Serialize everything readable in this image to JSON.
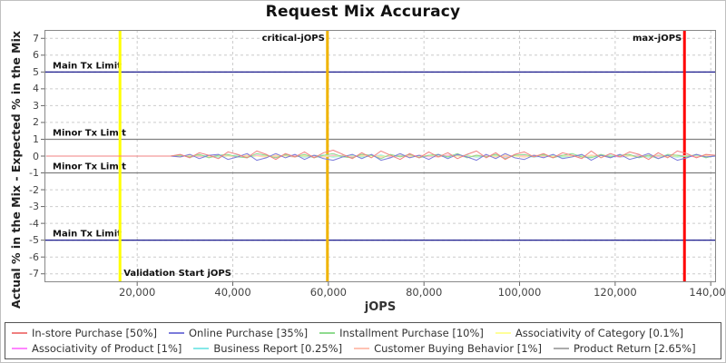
{
  "chart": {
    "title": "Request Mix Accuracy",
    "xlabel": "jOPS",
    "ylabel": "Actual % in the Mix - Expected % in the Mix"
  },
  "chart_data": {
    "type": "line",
    "title": "Request Mix Accuracy",
    "xlabel": "jOPS",
    "ylabel": "Actual % in the Mix - Expected % in the Mix",
    "xlim": [
      600,
      141100
    ],
    "ylim": [
      -7.5,
      7.5
    ],
    "grid": "dashed",
    "legend_position": "bottom",
    "yticks": [
      7,
      6,
      5,
      4,
      3,
      2,
      1,
      0,
      -1,
      -2,
      -3,
      -4,
      -5,
      -6,
      -7
    ],
    "xticks": [
      20000,
      40000,
      60000,
      80000,
      100000,
      120000,
      140000
    ],
    "xtick_labels": [
      "20,000",
      "40,000",
      "60,000",
      "80,000",
      "100,000",
      "120,000",
      "140,000"
    ],
    "hlines": [
      {
        "y": 5,
        "color": "#000080",
        "label": "Main Tx Limit"
      },
      {
        "y": 1,
        "color": "#808080",
        "label": "Minor Tx Limit"
      },
      {
        "y": -1,
        "color": "#808080",
        "label": "Minor Tx Limit"
      },
      {
        "y": -5,
        "color": "#000080",
        "label": "Main Tx Limit"
      }
    ],
    "vlines": [
      {
        "x": 16400,
        "color": "#FFFF00",
        "width": 3,
        "label": "Validation Start jOPS",
        "label_pos": "bottom-right"
      },
      {
        "x": 59800,
        "color": "#F0B400",
        "width": 3,
        "label": "critical-jOPS",
        "label_pos": "top-left"
      },
      {
        "x": 134500,
        "color": "#FF0000",
        "width": 3,
        "label": "max-jOPS",
        "label_pos": "top-left"
      }
    ],
    "x": [
      1000,
      3000,
      5000,
      7000,
      9000,
      11000,
      13000,
      15000,
      17000,
      19000,
      21000,
      23000,
      25000,
      27000,
      29000,
      31000,
      33000,
      35000,
      37000,
      39000,
      41000,
      43000,
      45000,
      47000,
      49000,
      51000,
      53000,
      55000,
      57000,
      59000,
      61000,
      63000,
      65000,
      67000,
      69000,
      71000,
      73000,
      75000,
      77000,
      79000,
      81000,
      83000,
      85000,
      87000,
      89000,
      91000,
      93000,
      95000,
      97000,
      99000,
      101000,
      103000,
      105000,
      107000,
      109000,
      111000,
      113000,
      115000,
      117000,
      119000,
      121000,
      123000,
      125000,
      127000,
      129000,
      131000,
      133000,
      135000,
      137000,
      139000,
      141000
    ],
    "series": [
      {
        "name": "In-store Purchase [50%]",
        "color": "#F08080",
        "values": [
          0,
          0,
          0,
          0,
          0,
          0,
          0,
          0,
          0,
          0,
          0,
          0,
          0,
          0,
          0.1,
          -0.1,
          0.2,
          0.05,
          -0.15,
          0.25,
          0.1,
          -0.1,
          0.3,
          0.1,
          -0.2,
          0.15,
          -0.05,
          0.25,
          -0.1,
          0.2,
          0.35,
          0.1,
          -0.15,
          0.2,
          -0.1,
          0.3,
          0.05,
          -0.2,
          0.15,
          -0.1,
          0.25,
          -0.05,
          0.2,
          -0.15,
          0.1,
          0.3,
          -0.1,
          0.2,
          -0.2,
          0.1,
          0.25,
          -0.05,
          0.15,
          -0.1,
          0.2,
          0.05,
          -0.15,
          0.3,
          -0.1,
          0.15,
          -0.05,
          0.25,
          0.1,
          -0.2,
          0.2,
          -0.1,
          0.3,
          0.15,
          -0.1,
          0.1,
          0.05
        ]
      },
      {
        "name": "Online Purchase [35%]",
        "color": "#7B7BDB",
        "values": [
          0,
          0,
          0,
          0,
          0,
          0,
          0,
          0,
          0,
          0,
          0,
          0,
          0,
          0,
          -0.05,
          0.1,
          -0.15,
          0.05,
          0.1,
          -0.2,
          -0.05,
          0.15,
          -0.25,
          -0.1,
          0.15,
          -0.1,
          0.1,
          -0.2,
          0.05,
          -0.15,
          -0.25,
          -0.05,
          0.1,
          -0.15,
          0.1,
          -0.25,
          -0.1,
          0.15,
          -0.1,
          0.05,
          -0.2,
          0.1,
          -0.15,
          0.1,
          -0.05,
          -0.25,
          0.1,
          -0.15,
          0.15,
          -0.1,
          -0.2,
          0.05,
          -0.1,
          0.1,
          -0.15,
          -0.05,
          0.1,
          -0.25,
          0.05,
          -0.1,
          0.1,
          -0.2,
          -0.05,
          0.15,
          -0.15,
          0.05,
          -0.25,
          -0.1,
          0.1,
          -0.05,
          0
        ]
      },
      {
        "name": "Installment Purchase [10%]",
        "color": "#8FDB8F",
        "values": [
          0,
          0,
          0,
          0,
          0,
          0,
          0,
          0,
          0,
          0,
          0,
          0,
          0,
          0,
          0.05,
          -0.05,
          0.1,
          -0.1,
          0.05,
          0.1,
          -0.05,
          -0.1,
          0.15,
          0.05,
          -0.1,
          0.1,
          -0.05,
          0.1,
          -0.1,
          0.05,
          0.15,
          -0.05,
          -0.1,
          0.1,
          0.05,
          -0.15,
          0.1,
          -0.05,
          0.1,
          -0.1,
          0.05,
          0.1,
          -0.05,
          0.15,
          -0.1,
          0.05,
          -0.05,
          0.1,
          -0.15,
          0.05,
          0.1,
          -0.05,
          0.1,
          -0.1,
          0.05,
          0.15,
          -0.05,
          -0.1,
          0.1,
          -0.05,
          0.05,
          0.1,
          -0.1,
          0.05,
          -0.15,
          0.1,
          0.05,
          -0.05,
          0.1,
          -0.1,
          0.05
        ]
      },
      {
        "name": "Associativity of Category [0.1%]",
        "color": "#FFFF99",
        "values": [
          0,
          0,
          0,
          0,
          0,
          0,
          0,
          0,
          0,
          0,
          0,
          0,
          0,
          0,
          0,
          0,
          0,
          0,
          0,
          0,
          0,
          0,
          0,
          0,
          0,
          0,
          0,
          0,
          0,
          0,
          0,
          0,
          0,
          0,
          0,
          0,
          0,
          0,
          0,
          0,
          0,
          0,
          0,
          0,
          0,
          0,
          0,
          0,
          0,
          0,
          0,
          0,
          0,
          0,
          0,
          0,
          0,
          0,
          0,
          0,
          0,
          0,
          0,
          0,
          0,
          0,
          0,
          0,
          0,
          0,
          0
        ]
      },
      {
        "name": "Associativity of Product [1%]",
        "color": "#FF85FF",
        "values": [
          0,
          0,
          0,
          0,
          0,
          0,
          0,
          0,
          0,
          0,
          0,
          0,
          0,
          0,
          0.04,
          0,
          -0.04,
          0,
          0.04,
          0,
          -0.04,
          0,
          0.04,
          0,
          -0.04,
          0,
          0.04,
          0,
          -0.04,
          0,
          0.04,
          0,
          -0.04,
          0,
          0.04,
          0,
          -0.04,
          0,
          0.04,
          0,
          -0.04,
          0,
          0.04,
          0,
          -0.04,
          0,
          0.04,
          0,
          -0.04,
          0,
          0.04,
          0,
          -0.04,
          0,
          0.04,
          0,
          -0.04,
          0,
          0.04,
          0,
          -0.04,
          0,
          0.04,
          0,
          -0.04,
          0,
          0.04,
          0,
          -0.04,
          0,
          0.04
        ]
      },
      {
        "name": "Business Report [0.25%]",
        "color": "#85E8E8",
        "values": [
          0,
          0,
          0,
          0,
          0,
          0,
          0,
          0,
          0,
          0,
          0,
          0,
          0,
          0,
          0.06,
          -0.06,
          0,
          0.06,
          -0.06,
          0,
          0.06,
          -0.06,
          0,
          0.06,
          -0.06,
          0,
          0.06,
          -0.06,
          0,
          0.06,
          -0.06,
          0,
          0.06,
          -0.06,
          0,
          0.06,
          -0.06,
          0,
          0.06,
          -0.06,
          0,
          0.06,
          -0.06,
          0,
          0.06,
          -0.06,
          0,
          0.06,
          -0.06,
          0,
          0.06,
          -0.06,
          0,
          0.06,
          -0.06,
          0,
          0.06,
          -0.06,
          0,
          0.06,
          -0.06,
          0,
          0.06,
          -0.06,
          0,
          0.06,
          -0.06,
          0,
          0.06,
          -0.06,
          0
        ]
      },
      {
        "name": "Customer Buying Behavior [1%]",
        "color": "#FFC2B3",
        "values": [
          0,
          0,
          0,
          0,
          0,
          0,
          0,
          0,
          0,
          0,
          0,
          0,
          0,
          0,
          -0.06,
          0.06,
          0,
          -0.06,
          0.06,
          0,
          -0.06,
          0.06,
          0,
          -0.06,
          0.06,
          0,
          -0.06,
          0.06,
          0,
          -0.06,
          0.06,
          0,
          -0.06,
          0.06,
          0,
          -0.06,
          0.06,
          0,
          -0.06,
          0.06,
          0,
          -0.06,
          0.06,
          0,
          -0.06,
          0.06,
          0,
          -0.06,
          0.06,
          0,
          -0.06,
          0.06,
          0,
          -0.06,
          0.06,
          0,
          -0.06,
          0.06,
          0,
          -0.06,
          0.06,
          0,
          -0.06,
          0.06,
          0,
          -0.06,
          0.06,
          0,
          -0.06,
          0.06,
          0
        ]
      },
      {
        "name": "Product Return [2.65%]",
        "color": "#ABABAB",
        "values": [
          0,
          0,
          0,
          0,
          0,
          0,
          0,
          0,
          0,
          0,
          0,
          0,
          0,
          0,
          0.05,
          -0.05,
          0.05,
          0,
          -0.05,
          0.05,
          0,
          -0.05,
          0.05,
          0,
          -0.05,
          0.05,
          0,
          -0.05,
          0.05,
          0,
          -0.05,
          0.05,
          0,
          -0.05,
          0.05,
          0,
          -0.05,
          0.05,
          0,
          -0.05,
          0.05,
          0,
          -0.05,
          0.05,
          0,
          -0.05,
          0.05,
          0,
          -0.05,
          0.05,
          0,
          -0.05,
          0.05,
          0,
          -0.05,
          0.05,
          0,
          -0.05,
          0.05,
          0,
          -0.05,
          0.05,
          0,
          -0.05,
          0.05,
          0,
          -0.05,
          0.05,
          0,
          -0.05,
          0.05
        ]
      }
    ]
  }
}
